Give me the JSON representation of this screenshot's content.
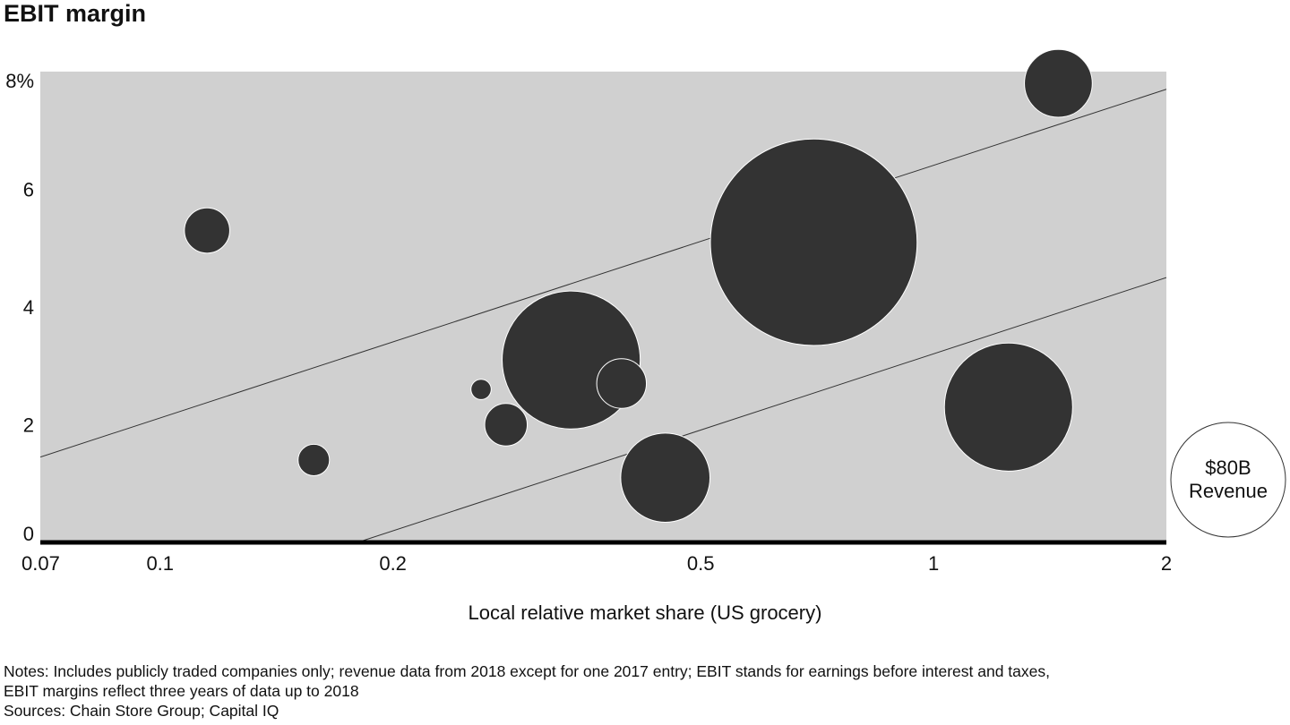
{
  "title": "EBIT margin",
  "xlabel": "Local relative market share (US grocery)",
  "notes": [
    "Notes: Includes publicly traded companies only; revenue data from 2018 except for one 2017 entry; EBIT stands for earnings before interest and taxes,",
    "EBIT margins reflect three years of data up to 2018",
    "Sources: Chain Store Group; Capital IQ"
  ],
  "legend": {
    "line1": "$80B",
    "line2": "Revenue"
  },
  "colors": {
    "plot_bg": "#d0d0d0",
    "bubble": "#333333",
    "axis": "#000000"
  },
  "chart_data": {
    "type": "scatter",
    "xscale": "log",
    "xlim": [
      0.07,
      2
    ],
    "ylim": [
      0,
      8
    ],
    "x_ticks": [
      0.07,
      0.1,
      0.2,
      0.5,
      1,
      2
    ],
    "x_tick_labels": [
      "0.07",
      "0.1",
      "0.2",
      "0.5",
      "1",
      "2"
    ],
    "y_ticks": [
      0,
      2,
      4,
      6,
      8
    ],
    "y_tick_labels": [
      "0",
      "2",
      "4",
      "6",
      "8%"
    ],
    "legend_bubble_revenue_b": 80,
    "points": [
      {
        "x": 0.115,
        "y": 5.3,
        "revenue_b": 12.5
      },
      {
        "x": 0.158,
        "y": 1.4,
        "revenue_b": 6.0
      },
      {
        "x": 0.26,
        "y": 2.6,
        "revenue_b": 2.5
      },
      {
        "x": 0.28,
        "y": 2.0,
        "revenue_b": 11.0
      },
      {
        "x": 0.34,
        "y": 3.1,
        "revenue_b": 116.0
      },
      {
        "x": 0.395,
        "y": 2.7,
        "revenue_b": 15.0
      },
      {
        "x": 0.45,
        "y": 1.1,
        "revenue_b": 48.5
      },
      {
        "x": 0.7,
        "y": 5.1,
        "revenue_b": 260.0
      },
      {
        "x": 1.25,
        "y": 2.3,
        "revenue_b": 100.0
      },
      {
        "x": 1.45,
        "y": 7.8,
        "revenue_b": 28.0
      }
    ],
    "trend_lines": [
      {
        "points": [
          [
            0.07,
            1.45
          ],
          [
            2,
            7.7
          ]
        ]
      },
      {
        "points": [
          [
            0.18,
            0.0
          ],
          [
            2,
            4.5
          ]
        ]
      }
    ]
  }
}
